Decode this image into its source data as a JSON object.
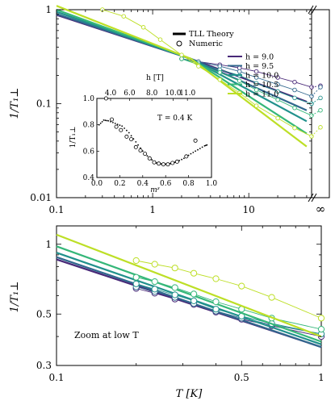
{
  "chart_data": [
    {
      "type": "line",
      "panel": "top",
      "xscale": "log",
      "yscale": "log",
      "xlim": [
        0.1,
        45
      ],
      "ylim": [
        0.01,
        1
      ],
      "x_ticks": [
        "0.1",
        "1",
        "10"
      ],
      "x_infinity_tick": "∞",
      "y_ticks": [
        "0.01",
        "0.1",
        "1"
      ],
      "ylabel": "1/T₁⊥",
      "legend_theory": "TLL Theory",
      "legend_numeric": "Numeric",
      "colors": [
        "#482878",
        "#31688e",
        "#21918c",
        "#35b779",
        "#bddf26"
      ],
      "series": [
        {
          "name": "h = 9.0",
          "theory": [
            [
              0.1,
              0.88
            ],
            [
              2.5,
              0.3
            ],
            [
              40,
              0.105
            ]
          ],
          "numeric": [
            [
              2,
              0.3
            ],
            [
              3,
              0.28
            ],
            [
              5,
              0.26
            ],
            [
              8,
              0.24
            ],
            [
              12,
              0.22
            ],
            [
              20,
              0.19
            ],
            [
              30,
              0.17
            ],
            [
              45,
              0.15
            ]
          ]
        },
        {
          "name": "h = 9.5",
          "theory": [
            [
              0.1,
              0.9
            ],
            [
              2.5,
              0.3
            ],
            [
              40,
              0.085
            ]
          ],
          "numeric": [
            [
              2,
              0.3
            ],
            [
              3,
              0.28
            ],
            [
              5,
              0.25
            ],
            [
              8,
              0.22
            ],
            [
              12,
              0.19
            ],
            [
              20,
              0.16
            ],
            [
              30,
              0.14
            ],
            [
              45,
              0.12
            ]
          ]
        },
        {
          "name": "h = 10.0",
          "theory": [
            [
              0.1,
              0.95
            ],
            [
              2.5,
              0.3
            ],
            [
              40,
              0.065
            ]
          ],
          "numeric": [
            [
              2,
              0.3
            ],
            [
              3,
              0.27
            ],
            [
              5,
              0.23
            ],
            [
              8,
              0.2
            ],
            [
              12,
              0.165
            ],
            [
              20,
              0.135
            ],
            [
              30,
              0.115
            ],
            [
              45,
              0.1
            ]
          ]
        },
        {
          "name": "h = 10.5",
          "theory": [
            [
              0.1,
              1.0
            ],
            [
              2.5,
              0.3
            ],
            [
              40,
              0.048
            ]
          ],
          "numeric": [
            [
              2,
              0.3
            ],
            [
              3,
              0.26
            ],
            [
              5,
              0.215
            ],
            [
              8,
              0.175
            ],
            [
              12,
              0.14
            ],
            [
              20,
              0.11
            ],
            [
              30,
              0.09
            ],
            [
              45,
              0.075
            ]
          ]
        },
        {
          "name": "h = 11.0",
          "theory": [
            [
              0.1,
              1.1
            ],
            [
              2.5,
              0.3
            ],
            [
              40,
              0.035
            ]
          ],
          "numeric": [
            [
              0.3,
              1.0
            ],
            [
              0.5,
              0.85
            ],
            [
              0.8,
              0.65
            ],
            [
              1.2,
              0.48
            ],
            [
              2,
              0.33
            ],
            [
              3,
              0.25
            ],
            [
              5,
              0.18
            ],
            [
              8,
              0.13
            ],
            [
              12,
              0.095
            ],
            [
              20,
              0.07
            ],
            [
              30,
              0.055
            ],
            [
              45,
              0.045
            ]
          ]
        }
      ],
      "infinity_markers": [
        0.155,
        0.15,
        0.115,
        0.085,
        0.056
      ]
    },
    {
      "type": "scatter",
      "panel": "inset",
      "xlim": [
        0,
        1
      ],
      "ylim": [
        0.4,
        1.0
      ],
      "x_ticks": [
        "0.0",
        "0.2",
        "0.4",
        "0.6",
        "0.8",
        "1.0"
      ],
      "y_ticks": [
        "0.4",
        "0.6",
        "0.8",
        "1.0"
      ],
      "top_ticks": [
        "4.0",
        "6.0",
        "8.0",
        "10.0",
        "11.0"
      ],
      "top_tick_positions": [
        0.12,
        0.285,
        0.48,
        0.665,
        0.79
      ],
      "top_label": "h [T]",
      "xlabel": "mᶻ",
      "ylabel": "1/T₁⊥",
      "annotation": "T = 0.4 K",
      "theory_curve": [
        [
          0.02,
          0.8
        ],
        [
          0.06,
          0.835
        ],
        [
          0.1,
          0.83
        ],
        [
          0.16,
          0.81
        ],
        [
          0.22,
          0.79
        ],
        [
          0.28,
          0.74
        ],
        [
          0.34,
          0.67
        ],
        [
          0.4,
          0.6
        ],
        [
          0.46,
          0.545
        ],
        [
          0.52,
          0.51
        ],
        [
          0.58,
          0.5
        ],
        [
          0.64,
          0.505
        ],
        [
          0.7,
          0.52
        ],
        [
          0.76,
          0.545
        ],
        [
          0.82,
          0.58
        ],
        [
          0.88,
          0.61
        ],
        [
          0.94,
          0.64
        ],
        [
          0.97,
          0.65
        ]
      ],
      "numeric_points": [
        [
          0.08,
          1.0
        ],
        [
          0.13,
          0.84
        ],
        [
          0.17,
          0.785
        ],
        [
          0.21,
          0.76
        ],
        [
          0.26,
          0.71
        ],
        [
          0.3,
          0.69
        ],
        [
          0.34,
          0.63
        ],
        [
          0.38,
          0.605
        ],
        [
          0.42,
          0.58
        ],
        [
          0.46,
          0.545
        ],
        [
          0.5,
          0.515
        ],
        [
          0.54,
          0.505
        ],
        [
          0.58,
          0.5
        ],
        [
          0.62,
          0.5
        ],
        [
          0.66,
          0.51
        ],
        [
          0.7,
          0.52
        ],
        [
          0.78,
          0.56
        ],
        [
          0.86,
          0.68
        ]
      ]
    },
    {
      "type": "line",
      "panel": "bottom",
      "xscale": "log",
      "yscale": "log",
      "xlim": [
        0.1,
        1
      ],
      "ylim": [
        0.3,
        1.2
      ],
      "x_ticks": [
        "0.1",
        "0.5",
        "1"
      ],
      "y_ticks": [
        "0.3",
        "0.5",
        "1"
      ],
      "xlabel": "T [K]",
      "ylabel": "1/T₁⊥",
      "annotation": "Zoom at low T",
      "series": [
        {
          "name": "h = 9.0",
          "theory": [
            [
              0.1,
              0.86
            ],
            [
              1,
              0.36
            ]
          ],
          "numeric": [
            [
              0.2,
              0.645
            ],
            [
              0.235,
              0.615
            ],
            [
              0.28,
              0.58
            ],
            [
              0.33,
              0.55
            ],
            [
              0.4,
              0.51
            ],
            [
              0.5,
              0.475
            ],
            [
              0.65,
              0.445
            ],
            [
              1,
              0.4
            ]
          ]
        },
        {
          "name": "h = 9.5",
          "theory": [
            [
              0.1,
              0.88
            ],
            [
              1,
              0.36
            ]
          ],
          "numeric": [
            [
              0.2,
              0.655
            ],
            [
              0.235,
              0.625
            ],
            [
              0.28,
              0.59
            ],
            [
              0.33,
              0.555
            ],
            [
              0.4,
              0.515
            ],
            [
              0.5,
              0.48
            ],
            [
              0.65,
              0.45
            ],
            [
              1,
              0.41
            ]
          ]
        },
        {
          "name": "h = 10.0",
          "theory": [
            [
              0.1,
              0.92
            ],
            [
              1,
              0.37
            ]
          ],
          "numeric": [
            [
              0.2,
              0.675
            ],
            [
              0.235,
              0.64
            ],
            [
              0.28,
              0.605
            ],
            [
              0.33,
              0.57
            ],
            [
              0.4,
              0.525
            ],
            [
              0.5,
              0.49
            ],
            [
              0.65,
              0.455
            ],
            [
              1,
              0.41
            ]
          ]
        },
        {
          "name": "h = 10.5",
          "theory": [
            [
              0.1,
              0.98
            ],
            [
              1,
              0.38
            ]
          ],
          "numeric": [
            [
              0.2,
              0.72
            ],
            [
              0.235,
              0.69
            ],
            [
              0.28,
              0.65
            ],
            [
              0.33,
              0.61
            ],
            [
              0.4,
              0.565
            ],
            [
              0.5,
              0.525
            ],
            [
              0.65,
              0.48
            ],
            [
              1,
              0.43
            ]
          ]
        },
        {
          "name": "h = 11.0",
          "theory": [
            [
              0.1,
              1.1
            ],
            [
              1,
              0.4
            ]
          ],
          "numeric": [
            [
              0.2,
              0.85
            ],
            [
              0.235,
              0.82
            ],
            [
              0.28,
              0.79
            ],
            [
              0.33,
              0.75
            ],
            [
              0.4,
              0.71
            ],
            [
              0.5,
              0.66
            ],
            [
              0.65,
              0.59
            ],
            [
              1,
              0.48
            ]
          ]
        }
      ]
    }
  ]
}
